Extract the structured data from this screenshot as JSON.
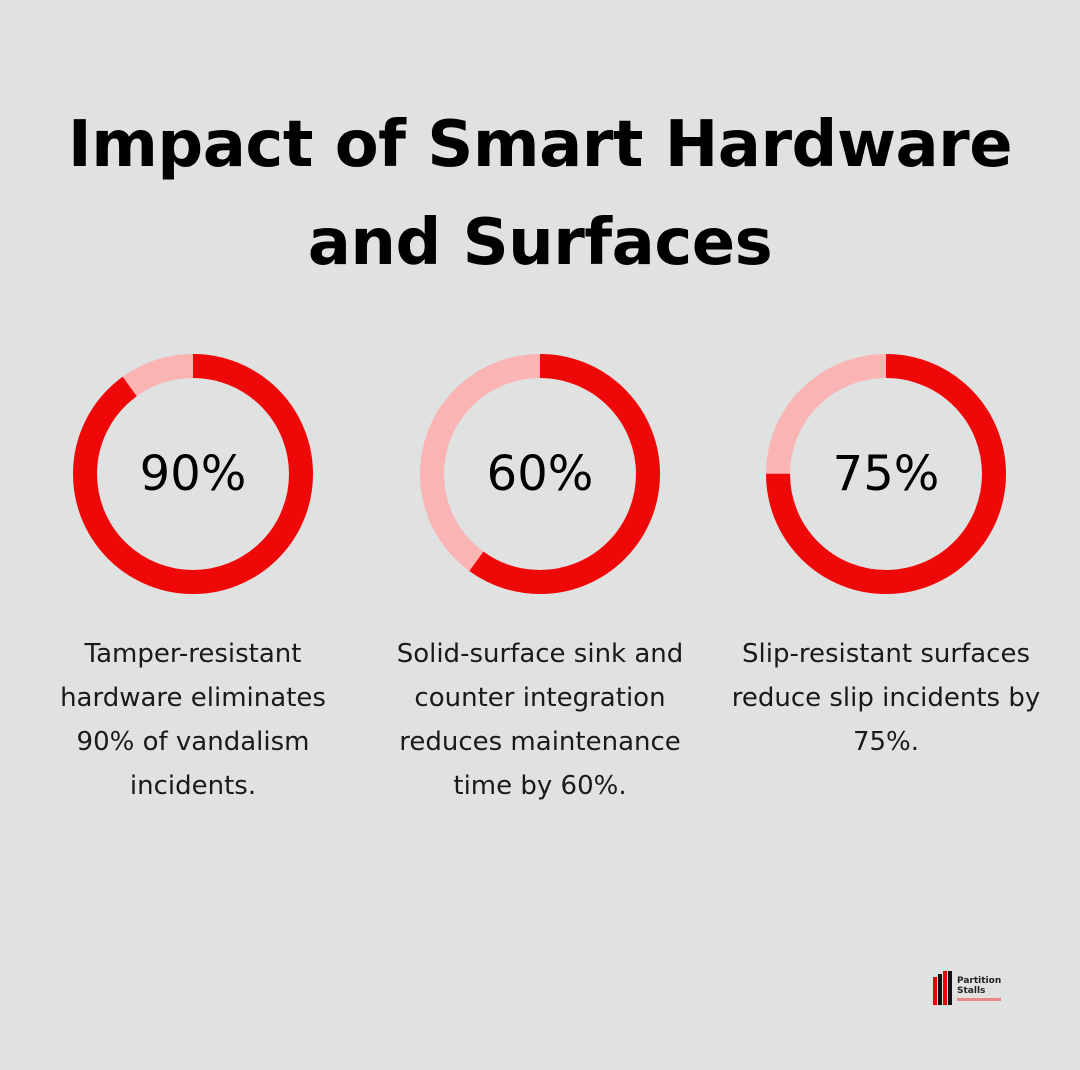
{
  "title": {
    "line1": "Impact of Smart Hardware",
    "line2": "and Surfaces"
  },
  "colors": {
    "background": "#e0e1e1",
    "accent": "#ee0808",
    "track": "#fab4b4",
    "text": "#000000"
  },
  "stats": [
    {
      "value_label": "90%",
      "percent": 90,
      "description": "Tamper-resistant hardware eliminates 90% of vandalism incidents."
    },
    {
      "value_label": "60%",
      "percent": 60,
      "description": "Solid-surface sink and counter integration reduces maintenance time by 60%."
    },
    {
      "value_label": "75%",
      "percent": 75,
      "description": "Slip-resistant surfaces reduce slip incidents by 75%."
    }
  ],
  "logo": {
    "line1": "Partition",
    "line2": "Stalls"
  },
  "chart_data": {
    "type": "pie",
    "subtype": "donut-progress",
    "title": "Impact of Smart Hardware and Surfaces",
    "categories": [
      "Tamper-resistant hardware eliminates 90% of vandalism incidents.",
      "Solid-surface sink and counter integration reduces maintenance time by 60%.",
      "Slip-resistant surfaces reduce slip incidents by 75%."
    ],
    "values": [
      90,
      60,
      75
    ],
    "max": 100,
    "unit": "%",
    "legend": "none",
    "grid": false
  }
}
